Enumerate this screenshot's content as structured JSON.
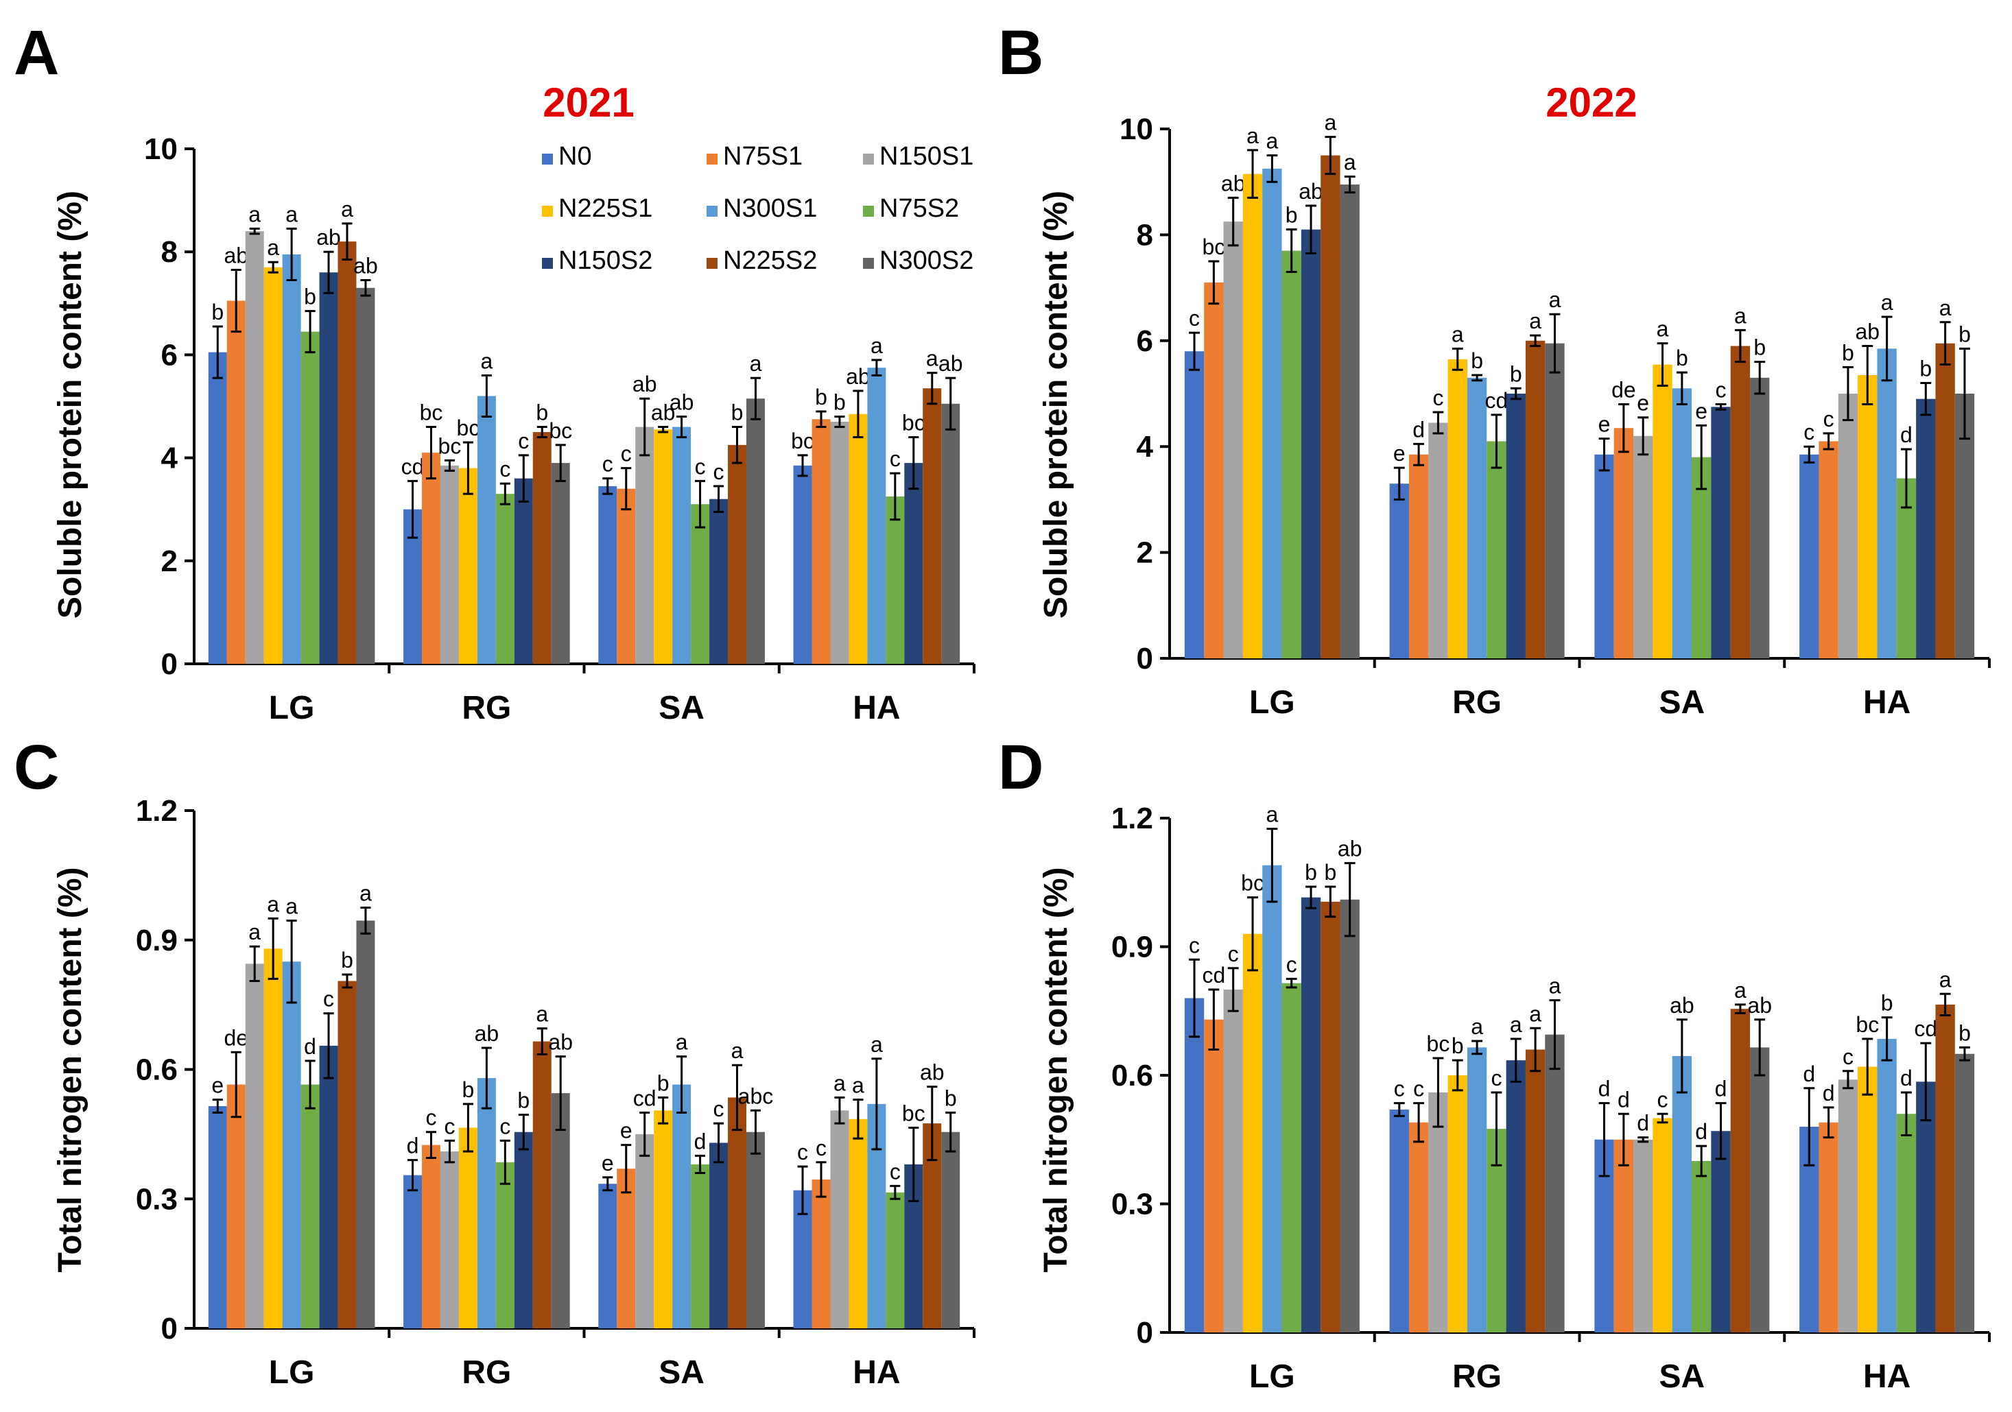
{
  "chart_data": [
    {
      "panel": "A",
      "type": "bar",
      "title": "2021",
      "ylabel": "Soluble protein content (%)",
      "ylim": [
        0,
        10
      ],
      "yticks": [
        "0",
        "2",
        "4",
        "6",
        "8",
        "10"
      ],
      "categories": [
        "LG",
        "RG",
        "SA",
        "HA"
      ],
      "series": [
        {
          "name": "N0",
          "values": [
            6.05,
            3.0,
            3.45,
            3.85
          ],
          "errors": [
            0.5,
            0.55,
            0.15,
            0.2
          ],
          "letters": [
            "b",
            "cd",
            "c",
            "bc"
          ]
        },
        {
          "name": "N75S1",
          "values": [
            7.05,
            4.1,
            3.4,
            4.75
          ],
          "errors": [
            0.6,
            0.5,
            0.4,
            0.15
          ],
          "letters": [
            "ab",
            "bc",
            "c",
            "b"
          ]
        },
        {
          "name": "N150S1",
          "values": [
            8.4,
            3.85,
            4.6,
            4.7
          ],
          "errors": [
            0.05,
            0.1,
            0.55,
            0.1
          ],
          "letters": [
            "a",
            "bc",
            "ab",
            "b"
          ]
        },
        {
          "name": "N225S1",
          "values": [
            7.7,
            3.8,
            4.55,
            4.85
          ],
          "errors": [
            0.1,
            0.5,
            0.05,
            0.45
          ],
          "letters": [
            "a",
            "bc",
            "ab",
            "ab"
          ]
        },
        {
          "name": "N300S1",
          "values": [
            7.95,
            5.2,
            4.6,
            5.75
          ],
          "errors": [
            0.5,
            0.4,
            0.2,
            0.15
          ],
          "letters": [
            "a",
            "a",
            "ab",
            "a"
          ]
        },
        {
          "name": "N75S2",
          "values": [
            6.45,
            3.3,
            3.1,
            3.25
          ],
          "errors": [
            0.4,
            0.2,
            0.45,
            0.45
          ],
          "letters": [
            "b",
            "c",
            "c",
            "c"
          ]
        },
        {
          "name": "N150S2",
          "values": [
            7.6,
            3.6,
            3.2,
            3.9
          ],
          "errors": [
            0.4,
            0.45,
            0.25,
            0.5
          ],
          "letters": [
            "ab",
            "c",
            "c",
            "bc"
          ]
        },
        {
          "name": "N225S2",
          "values": [
            8.2,
            4.5,
            4.25,
            5.35
          ],
          "errors": [
            0.35,
            0.1,
            0.35,
            0.3
          ],
          "letters": [
            "a",
            "b",
            "b",
            "a"
          ]
        },
        {
          "name": "N300S2",
          "values": [
            7.3,
            3.9,
            5.15,
            5.05
          ],
          "errors": [
            0.15,
            0.35,
            0.4,
            0.5
          ],
          "letters": [
            "ab",
            "bc",
            "a",
            "ab"
          ]
        }
      ]
    },
    {
      "panel": "B",
      "type": "bar",
      "title": "2022",
      "ylabel": "Soluble protein content (%)",
      "ylim": [
        0,
        10
      ],
      "yticks": [
        "0",
        "2",
        "4",
        "6",
        "8",
        "10"
      ],
      "categories": [
        "LG",
        "RG",
        "SA",
        "HA"
      ],
      "series": [
        {
          "name": "N0",
          "values": [
            5.8,
            3.3,
            3.85,
            3.85
          ],
          "errors": [
            0.35,
            0.3,
            0.3,
            0.15
          ],
          "letters": [
            "c",
            "e",
            "e",
            "c"
          ]
        },
        {
          "name": "N75S1",
          "values": [
            7.1,
            3.85,
            4.35,
            4.1
          ],
          "errors": [
            0.4,
            0.2,
            0.45,
            0.15
          ],
          "letters": [
            "bc",
            "d",
            "de",
            "c"
          ]
        },
        {
          "name": "N150S1",
          "values": [
            8.25,
            4.45,
            4.2,
            5.0
          ],
          "errors": [
            0.45,
            0.2,
            0.35,
            0.5
          ],
          "letters": [
            "ab",
            "c",
            "e",
            "b"
          ]
        },
        {
          "name": "N225S1",
          "values": [
            9.15,
            5.65,
            5.55,
            5.35
          ],
          "errors": [
            0.45,
            0.2,
            0.4,
            0.55
          ],
          "letters": [
            "a",
            "a",
            "a",
            "ab"
          ]
        },
        {
          "name": "N300S1",
          "values": [
            9.25,
            5.3,
            5.1,
            5.85
          ],
          "errors": [
            0.25,
            0.05,
            0.3,
            0.6
          ],
          "letters": [
            "a",
            "b",
            "b",
            "a"
          ]
        },
        {
          "name": "N75S2",
          "values": [
            7.7,
            4.1,
            3.8,
            3.4
          ],
          "errors": [
            0.4,
            0.5,
            0.6,
            0.55
          ],
          "letters": [
            "b",
            "cd",
            "e",
            "d"
          ]
        },
        {
          "name": "N150S2",
          "values": [
            8.1,
            5.0,
            4.75,
            4.9
          ],
          "errors": [
            0.45,
            0.1,
            0.05,
            0.3
          ],
          "letters": [
            "ab",
            "b",
            "c",
            "b"
          ]
        },
        {
          "name": "N225S2",
          "values": [
            9.5,
            6.0,
            5.9,
            5.95
          ],
          "errors": [
            0.35,
            0.1,
            0.3,
            0.4
          ],
          "letters": [
            "a",
            "a",
            "a",
            "a"
          ]
        },
        {
          "name": "N300S2",
          "values": [
            8.95,
            5.95,
            5.3,
            5.0
          ],
          "errors": [
            0.15,
            0.55,
            0.3,
            0.85
          ],
          "letters": [
            "a",
            "a",
            "b",
            "b"
          ]
        }
      ]
    },
    {
      "panel": "C",
      "type": "bar",
      "title": "",
      "ylabel": "Total nitrogen content (%)",
      "ylim": [
        0,
        1.2
      ],
      "yticks": [
        "0",
        "0.3",
        "0.6",
        "0.9",
        "1.2"
      ],
      "categories": [
        "LG",
        "RG",
        "SA",
        "HA"
      ],
      "series": [
        {
          "name": "N0",
          "values": [
            0.515,
            0.355,
            0.335,
            0.32
          ],
          "errors": [
            0.015,
            0.035,
            0.015,
            0.055
          ],
          "letters": [
            "e",
            "d",
            "e",
            "c"
          ]
        },
        {
          "name": "N75S1",
          "values": [
            0.565,
            0.425,
            0.37,
            0.345
          ],
          "errors": [
            0.075,
            0.03,
            0.055,
            0.04
          ],
          "letters": [
            "de",
            "c",
            "e",
            "c"
          ]
        },
        {
          "name": "N150S1",
          "values": [
            0.845,
            0.41,
            0.45,
            0.505
          ],
          "errors": [
            0.04,
            0.025,
            0.05,
            0.03
          ],
          "letters": [
            "a",
            "c",
            "cd",
            "a"
          ]
        },
        {
          "name": "N225S1",
          "values": [
            0.88,
            0.465,
            0.505,
            0.485
          ],
          "errors": [
            0.07,
            0.055,
            0.03,
            0.045
          ],
          "letters": [
            "a",
            "b",
            "b",
            "a"
          ]
        },
        {
          "name": "N300S1",
          "values": [
            0.85,
            0.58,
            0.565,
            0.52
          ],
          "errors": [
            0.095,
            0.07,
            0.065,
            0.105
          ],
          "letters": [
            "a",
            "ab",
            "a",
            "a"
          ]
        },
        {
          "name": "N75S2",
          "values": [
            0.565,
            0.385,
            0.38,
            0.315
          ],
          "errors": [
            0.055,
            0.05,
            0.02,
            0.015
          ],
          "letters": [
            "d",
            "c",
            "d",
            "c"
          ]
        },
        {
          "name": "N150S2",
          "values": [
            0.655,
            0.455,
            0.43,
            0.38
          ],
          "errors": [
            0.075,
            0.04,
            0.045,
            0.085
          ],
          "letters": [
            "c",
            "b",
            "c",
            "bc"
          ]
        },
        {
          "name": "N225S2",
          "values": [
            0.805,
            0.665,
            0.535,
            0.475
          ],
          "errors": [
            0.015,
            0.03,
            0.075,
            0.085
          ],
          "letters": [
            "b",
            "a",
            "a",
            "ab"
          ]
        },
        {
          "name": "N300S2",
          "values": [
            0.945,
            0.545,
            0.455,
            0.455
          ],
          "errors": [
            0.03,
            0.085,
            0.05,
            0.045
          ],
          "letters": [
            "a",
            "ab",
            "abc",
            "b"
          ]
        }
      ]
    },
    {
      "panel": "D",
      "type": "bar",
      "title": "",
      "ylabel": "Total nitrogen content (%)",
      "ylim": [
        0,
        1.2
      ],
      "yticks": [
        "0",
        "0.3",
        "0.6",
        "0.9",
        "1.2"
      ],
      "categories": [
        "LG",
        "RG",
        "SA",
        "HA"
      ],
      "series": [
        {
          "name": "N0",
          "values": [
            0.78,
            0.52,
            0.45,
            0.48
          ],
          "errors": [
            0.09,
            0.015,
            0.085,
            0.09
          ],
          "letters": [
            "c",
            "c",
            "d",
            "d"
          ]
        },
        {
          "name": "N75S1",
          "values": [
            0.73,
            0.49,
            0.45,
            0.49
          ],
          "errors": [
            0.07,
            0.045,
            0.06,
            0.035
          ],
          "letters": [
            "cd",
            "c",
            "d",
            "d"
          ]
        },
        {
          "name": "N150S1",
          "values": [
            0.8,
            0.56,
            0.45,
            0.59
          ],
          "errors": [
            0.05,
            0.08,
            0.005,
            0.02
          ],
          "letters": [
            "c",
            "bc",
            "d",
            "c"
          ]
        },
        {
          "name": "N225S1",
          "values": [
            0.93,
            0.6,
            0.5,
            0.62
          ],
          "errors": [
            0.085,
            0.035,
            0.01,
            0.065
          ],
          "letters": [
            "bc",
            "b",
            "c",
            "bc"
          ]
        },
        {
          "name": "N300S1",
          "values": [
            1.09,
            0.665,
            0.645,
            0.685
          ],
          "errors": [
            0.085,
            0.015,
            0.085,
            0.05
          ],
          "letters": [
            "a",
            "a",
            "ab",
            "b"
          ]
        },
        {
          "name": "N75S2",
          "values": [
            0.815,
            0.475,
            0.4,
            0.51
          ],
          "errors": [
            0.01,
            0.085,
            0.035,
            0.05
          ],
          "letters": [
            "c",
            "c",
            "d",
            "d"
          ]
        },
        {
          "name": "N150S2",
          "values": [
            1.015,
            0.635,
            0.47,
            0.585
          ],
          "errors": [
            0.025,
            0.05,
            0.065,
            0.09
          ],
          "letters": [
            "b",
            "a",
            "d",
            "cd"
          ]
        },
        {
          "name": "N225S2",
          "values": [
            1.005,
            0.66,
            0.755,
            0.765
          ],
          "errors": [
            0.035,
            0.05,
            0.01,
            0.025
          ],
          "letters": [
            "b",
            "a",
            "a",
            "a"
          ]
        },
        {
          "name": "N300S2",
          "values": [
            1.01,
            0.695,
            0.665,
            0.65
          ],
          "errors": [
            0.085,
            0.08,
            0.065,
            0.015
          ],
          "letters": [
            "ab",
            "a",
            "ab",
            "b"
          ]
        }
      ]
    }
  ],
  "legend": {
    "labels": [
      "N0",
      "N75S1",
      "N150S1",
      "N225S1",
      "N300S1",
      "N75S2",
      "N150S2",
      "N225S2",
      "N300S2"
    ],
    "colors": [
      "#4472C4",
      "#ED7D31",
      "#A5A5A5",
      "#FFC000",
      "#5B9BD5",
      "#70AD47",
      "#264478",
      "#9E480E",
      "#636363"
    ],
    "placement": "top-center of panel A"
  },
  "series_colors": [
    "#4472C4",
    "#ED7D31",
    "#A5A5A5",
    "#FFC000",
    "#5B9BD5",
    "#70AD47",
    "#264478",
    "#9E480E",
    "#636363"
  ],
  "title_color": "#e00000"
}
